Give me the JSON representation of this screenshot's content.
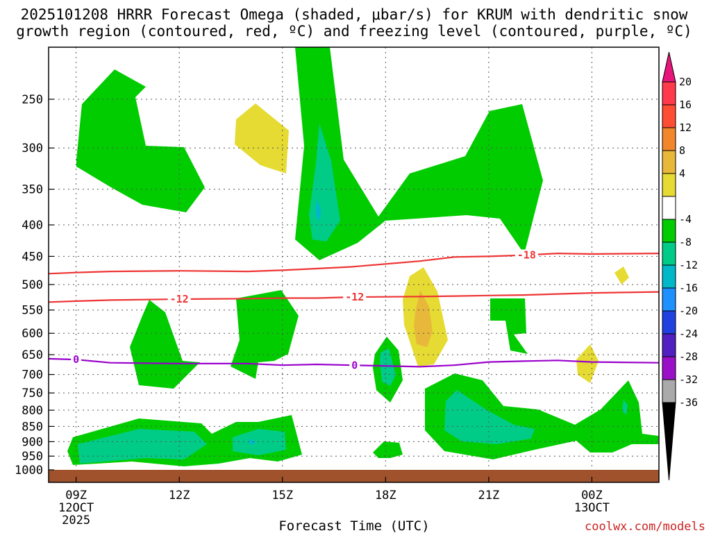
{
  "chart_data": {
    "type": "time-pressure cross-section",
    "title_line1": "2025101208 HRRR Forecast Omega (shaded, μbar/s) for KRUM with dendritic snow",
    "title_line2": "growth region (contoured, red, ºC) and freezing level (contoured, purple, ºC)",
    "xlabel": "Forecast Time (UTC)",
    "watermark": "coolwx.com/models",
    "x_range_hours": [
      8.2,
      25.95
    ],
    "x_ticks": [
      {
        "hour": 9,
        "label": "09Z",
        "sub1": "12OCT",
        "sub2": "2025"
      },
      {
        "hour": 12,
        "label": "12Z"
      },
      {
        "hour": 15,
        "label": "15Z"
      },
      {
        "hour": 18,
        "label": "18Z"
      },
      {
        "hour": 21,
        "label": "21Z"
      },
      {
        "hour": 24,
        "label": "00Z",
        "sub1": "13OCT"
      }
    ],
    "y_ticks_hpa": [
      250,
      300,
      350,
      400,
      450,
      500,
      550,
      600,
      650,
      700,
      750,
      800,
      850,
      900,
      950,
      1000
    ],
    "colorbar": {
      "labels": [
        "20",
        "16",
        "12",
        "8",
        "4",
        "-4",
        "-8",
        "-12",
        "-16",
        "-20",
        "-24",
        "-28",
        "-32",
        "-36"
      ],
      "colors": [
        "#ff3a4a",
        "#ff4d33",
        "#f2862b",
        "#e8b83a",
        "#e6db33",
        "#ffffff",
        "#00cc00",
        "#00cc88",
        "#00b8c8",
        "#1e90ff",
        "#2040e0",
        "#5020c0",
        "#9a10c8",
        "#aaaaaa"
      ],
      "top_arrow": "#e8157a",
      "bottom_arrow": "#000000"
    },
    "omega_legend": {
      "green": "-8 to -4",
      "teal": "-12 to -8",
      "cyan": "-16 to -12",
      "yellow": "4 to 8",
      "orange": "8 to 12"
    },
    "contours": [
      {
        "name": "snow growth -18 °C",
        "color": "#ee3333",
        "label": "-18",
        "pressure_hpa": [
          480,
          478,
          476,
          475,
          476,
          474,
          471,
          468,
          458,
          451,
          450,
          448,
          445,
          446,
          445
        ]
      },
      {
        "name": "snow growth -12 °C",
        "color": "#ee3333",
        "label": "-12",
        "pressure_hpa": [
          534,
          532,
          530,
          528,
          527,
          526,
          526,
          524,
          523,
          522,
          521,
          520,
          518,
          516,
          514
        ]
      },
      {
        "name": "freezing level 0 °C",
        "color": "#9900cc",
        "label": "0",
        "pressure_hpa": [
          660,
          662,
          670,
          672,
          672,
          676,
          674,
          676,
          680,
          676,
          668,
          666,
          664,
          668,
          670
        ]
      }
    ],
    "contour_hours": [
      8.2,
      9,
      10,
      12,
      14,
      15,
      16,
      17,
      19,
      20,
      21,
      22,
      23,
      24,
      25.95
    ],
    "surface_fill": "#a0522d"
  }
}
